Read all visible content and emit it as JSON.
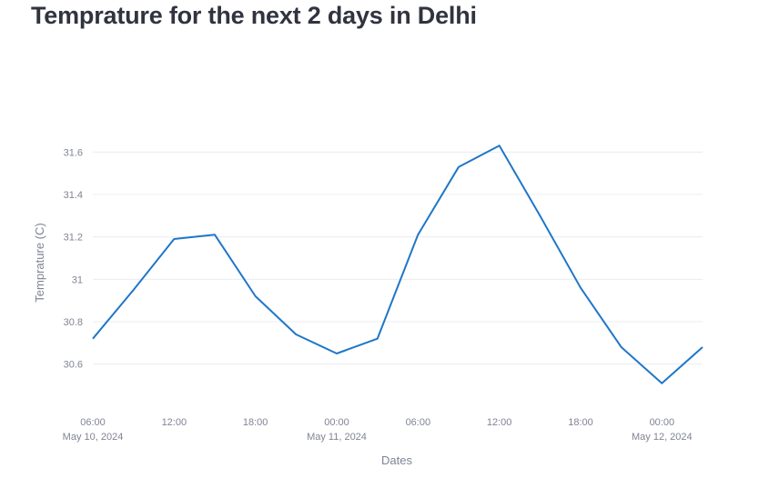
{
  "page": {
    "title": "Temprature for the next 2 days in Delhi"
  },
  "chart_data": {
    "type": "line",
    "title": "Temprature for the next 2 days in Delhi",
    "xlabel": "Dates",
    "ylabel": "Temprature (C)",
    "line_color": "#1f77c8",
    "grid": true,
    "x_range": [
      "2024-05-10T06:00",
      "2024-05-12T03:00"
    ],
    "ylim": [
      30.44,
      31.76
    ],
    "y_ticks": [
      {
        "value": 30.6,
        "label": "30.6"
      },
      {
        "value": 30.8,
        "label": "30.8"
      },
      {
        "value": 31.0,
        "label": "31"
      },
      {
        "value": 31.2,
        "label": "31.2"
      },
      {
        "value": 31.4,
        "label": "31.4"
      },
      {
        "value": 31.6,
        "label": "31.6"
      }
    ],
    "x_ticks": [
      {
        "time": "2024-05-10T06:00",
        "label": "06:00",
        "sublabel": "May 10, 2024"
      },
      {
        "time": "2024-05-10T12:00",
        "label": "12:00",
        "sublabel": ""
      },
      {
        "time": "2024-05-10T18:00",
        "label": "18:00",
        "sublabel": ""
      },
      {
        "time": "2024-05-11T00:00",
        "label": "00:00",
        "sublabel": "May 11, 2024"
      },
      {
        "time": "2024-05-11T06:00",
        "label": "06:00",
        "sublabel": ""
      },
      {
        "time": "2024-05-11T12:00",
        "label": "12:00",
        "sublabel": ""
      },
      {
        "time": "2024-05-11T18:00",
        "label": "18:00",
        "sublabel": ""
      },
      {
        "time": "2024-05-12T00:00",
        "label": "00:00",
        "sublabel": "May 12, 2024"
      }
    ],
    "series": [
      {
        "x": [
          "2024-05-10T06:00",
          "2024-05-10T09:00",
          "2024-05-10T12:00",
          "2024-05-10T15:00",
          "2024-05-10T18:00",
          "2024-05-10T21:00",
          "2024-05-11T00:00",
          "2024-05-11T03:00",
          "2024-05-11T06:00",
          "2024-05-11T09:00",
          "2024-05-11T12:00",
          "2024-05-11T15:00",
          "2024-05-11T18:00",
          "2024-05-11T21:00",
          "2024-05-12T00:00",
          "2024-05-12T03:00"
        ],
        "values": [
          30.72,
          30.95,
          31.19,
          31.21,
          30.92,
          30.74,
          30.65,
          30.72,
          31.21,
          31.53,
          31.63,
          31.3,
          30.96,
          30.68,
          30.51,
          30.68
        ]
      }
    ]
  }
}
